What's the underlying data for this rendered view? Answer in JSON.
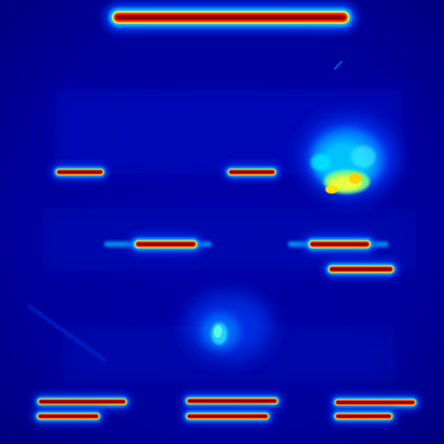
{
  "image": {
    "kind": "attention-heatmap",
    "colormap": "jet",
    "background_color": "#00008f",
    "colormap_stops": [
      "#00007f",
      "#0000ff",
      "#0080ff",
      "#00ffff",
      "#80ff80",
      "#ffff00",
      "#ff8000",
      "#ff0000",
      "#800000"
    ]
  }
}
